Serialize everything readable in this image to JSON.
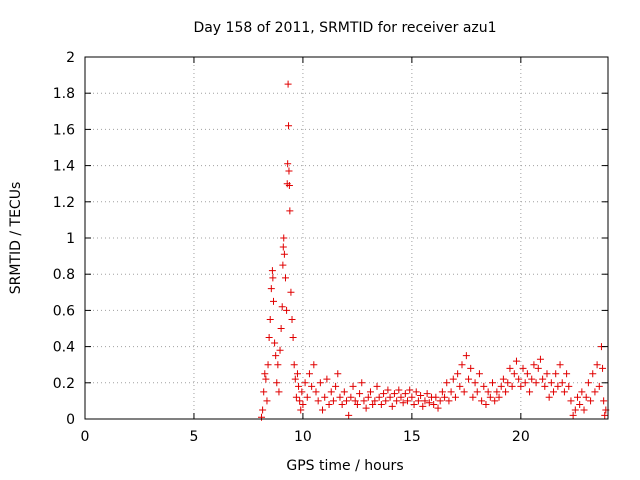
{
  "chart_data": {
    "type": "scatter",
    "title": "Day 158 of 2011, SRMTID for receiver azu1",
    "xlabel": "GPS time / hours",
    "ylabel": "SRMTID / TECUs",
    "xlim": [
      0,
      24
    ],
    "ylim": [
      0,
      2
    ],
    "xticks": [
      0,
      5,
      10,
      15,
      20
    ],
    "yticks": [
      0,
      0.2,
      0.4,
      0.6,
      0.8,
      1,
      1.2,
      1.4,
      1.6,
      1.8,
      2
    ],
    "grid": true,
    "marker": "+",
    "colors": {
      "series": "#e00000"
    },
    "series": [
      {
        "points": [
          [
            8.1,
            0.01
          ],
          [
            8.15,
            0.05
          ],
          [
            8.2,
            0.15
          ],
          [
            8.25,
            0.25
          ],
          [
            8.3,
            0.22
          ],
          [
            8.35,
            0.1
          ],
          [
            8.4,
            0.3
          ],
          [
            8.45,
            0.45
          ],
          [
            8.5,
            0.55
          ],
          [
            8.55,
            0.72
          ],
          [
            8.6,
            0.82
          ],
          [
            8.62,
            0.78
          ],
          [
            8.65,
            0.65
          ],
          [
            8.7,
            0.42
          ],
          [
            8.75,
            0.35
          ],
          [
            8.8,
            0.2
          ],
          [
            8.85,
            0.3
          ],
          [
            8.9,
            0.15
          ],
          [
            8.95,
            0.38
          ],
          [
            9.0,
            0.5
          ],
          [
            9.05,
            0.62
          ],
          [
            9.08,
            0.85
          ],
          [
            9.1,
            0.95
          ],
          [
            9.12,
            1.0
          ],
          [
            9.15,
            0.91
          ],
          [
            9.2,
            0.78
          ],
          [
            9.25,
            0.6
          ],
          [
            9.28,
            1.3
          ],
          [
            9.3,
            1.41
          ],
          [
            9.32,
            1.85
          ],
          [
            9.34,
            1.62
          ],
          [
            9.36,
            1.37
          ],
          [
            9.38,
            1.29
          ],
          [
            9.4,
            1.15
          ],
          [
            9.45,
            0.7
          ],
          [
            9.5,
            0.55
          ],
          [
            9.55,
            0.45
          ],
          [
            9.6,
            0.3
          ],
          [
            9.65,
            0.22
          ],
          [
            9.7,
            0.12
          ],
          [
            9.75,
            0.25
          ],
          [
            9.8,
            0.18
          ],
          [
            9.85,
            0.1
          ],
          [
            9.9,
            0.05
          ],
          [
            9.95,
            0.15
          ],
          [
            10.0,
            0.08
          ],
          [
            10.1,
            0.2
          ],
          [
            10.2,
            0.12
          ],
          [
            10.3,
            0.25
          ],
          [
            10.4,
            0.18
          ],
          [
            10.5,
            0.3
          ],
          [
            10.6,
            0.15
          ],
          [
            10.7,
            0.1
          ],
          [
            10.8,
            0.2
          ],
          [
            10.9,
            0.05
          ],
          [
            11.0,
            0.12
          ],
          [
            11.1,
            0.22
          ],
          [
            11.2,
            0.08
          ],
          [
            11.3,
            0.15
          ],
          [
            11.4,
            0.1
          ],
          [
            11.5,
            0.18
          ],
          [
            11.6,
            0.25
          ],
          [
            11.7,
            0.12
          ],
          [
            11.8,
            0.08
          ],
          [
            11.9,
            0.15
          ],
          [
            12.0,
            0.1
          ],
          [
            12.1,
            0.02
          ],
          [
            12.2,
            0.12
          ],
          [
            12.3,
            0.18
          ],
          [
            12.4,
            0.1
          ],
          [
            12.5,
            0.08
          ],
          [
            12.6,
            0.14
          ],
          [
            12.7,
            0.2
          ],
          [
            12.8,
            0.1
          ],
          [
            12.9,
            0.06
          ],
          [
            13.0,
            0.12
          ],
          [
            13.1,
            0.15
          ],
          [
            13.2,
            0.08
          ],
          [
            13.3,
            0.1
          ],
          [
            13.4,
            0.18
          ],
          [
            13.5,
            0.12
          ],
          [
            13.6,
            0.08
          ],
          [
            13.7,
            0.14
          ],
          [
            13.8,
            0.1
          ],
          [
            13.9,
            0.16
          ],
          [
            14.0,
            0.12
          ],
          [
            14.1,
            0.07
          ],
          [
            14.2,
            0.14
          ],
          [
            14.3,
            0.1
          ],
          [
            14.4,
            0.16
          ],
          [
            14.5,
            0.12
          ],
          [
            14.6,
            0.09
          ],
          [
            14.7,
            0.14
          ],
          [
            14.8,
            0.1
          ],
          [
            14.9,
            0.16
          ],
          [
            15.0,
            0.12
          ],
          [
            15.1,
            0.08
          ],
          [
            15.2,
            0.15
          ],
          [
            15.3,
            0.1
          ],
          [
            15.4,
            0.13
          ],
          [
            15.5,
            0.07
          ],
          [
            15.6,
            0.1
          ],
          [
            15.7,
            0.14
          ],
          [
            15.8,
            0.09
          ],
          [
            15.9,
            0.12
          ],
          [
            16.0,
            0.08
          ],
          [
            16.1,
            0.12
          ],
          [
            16.2,
            0.06
          ],
          [
            16.3,
            0.1
          ],
          [
            16.4,
            0.15
          ],
          [
            16.5,
            0.12
          ],
          [
            16.6,
            0.2
          ],
          [
            16.7,
            0.1
          ],
          [
            16.8,
            0.15
          ],
          [
            16.9,
            0.22
          ],
          [
            17.0,
            0.12
          ],
          [
            17.1,
            0.25
          ],
          [
            17.2,
            0.18
          ],
          [
            17.3,
            0.3
          ],
          [
            17.4,
            0.15
          ],
          [
            17.5,
            0.35
          ],
          [
            17.6,
            0.22
          ],
          [
            17.7,
            0.28
          ],
          [
            17.8,
            0.12
          ],
          [
            17.9,
            0.2
          ],
          [
            18.0,
            0.15
          ],
          [
            18.1,
            0.25
          ],
          [
            18.2,
            0.1
          ],
          [
            18.3,
            0.18
          ],
          [
            18.4,
            0.08
          ],
          [
            18.5,
            0.15
          ],
          [
            18.6,
            0.12
          ],
          [
            18.7,
            0.2
          ],
          [
            18.8,
            0.1
          ],
          [
            18.9,
            0.15
          ],
          [
            19.0,
            0.12
          ],
          [
            19.1,
            0.18
          ],
          [
            19.2,
            0.22
          ],
          [
            19.3,
            0.15
          ],
          [
            19.4,
            0.2
          ],
          [
            19.5,
            0.28
          ],
          [
            19.6,
            0.18
          ],
          [
            19.7,
            0.25
          ],
          [
            19.8,
            0.32
          ],
          [
            19.9,
            0.22
          ],
          [
            20.0,
            0.18
          ],
          [
            20.1,
            0.28
          ],
          [
            20.2,
            0.2
          ],
          [
            20.3,
            0.25
          ],
          [
            20.4,
            0.15
          ],
          [
            20.5,
            0.22
          ],
          [
            20.6,
            0.3
          ],
          [
            20.7,
            0.2
          ],
          [
            20.8,
            0.28
          ],
          [
            20.9,
            0.33
          ],
          [
            21.0,
            0.22
          ],
          [
            21.1,
            0.18
          ],
          [
            21.2,
            0.25
          ],
          [
            21.3,
            0.12
          ],
          [
            21.4,
            0.2
          ],
          [
            21.5,
            0.15
          ],
          [
            21.6,
            0.25
          ],
          [
            21.7,
            0.18
          ],
          [
            21.8,
            0.3
          ],
          [
            21.9,
            0.2
          ],
          [
            22.0,
            0.15
          ],
          [
            22.1,
            0.25
          ],
          [
            22.2,
            0.18
          ],
          [
            22.3,
            0.1
          ],
          [
            22.4,
            0.02
          ],
          [
            22.5,
            0.05
          ],
          [
            22.6,
            0.12
          ],
          [
            22.7,
            0.08
          ],
          [
            22.8,
            0.15
          ],
          [
            22.9,
            0.05
          ],
          [
            23.0,
            0.12
          ],
          [
            23.1,
            0.2
          ],
          [
            23.2,
            0.1
          ],
          [
            23.3,
            0.25
          ],
          [
            23.4,
            0.15
          ],
          [
            23.5,
            0.3
          ],
          [
            23.6,
            0.18
          ],
          [
            23.7,
            0.4
          ],
          [
            23.75,
            0.28
          ],
          [
            23.8,
            0.1
          ],
          [
            23.85,
            0.02
          ],
          [
            23.9,
            0.05
          ]
        ]
      }
    ]
  }
}
